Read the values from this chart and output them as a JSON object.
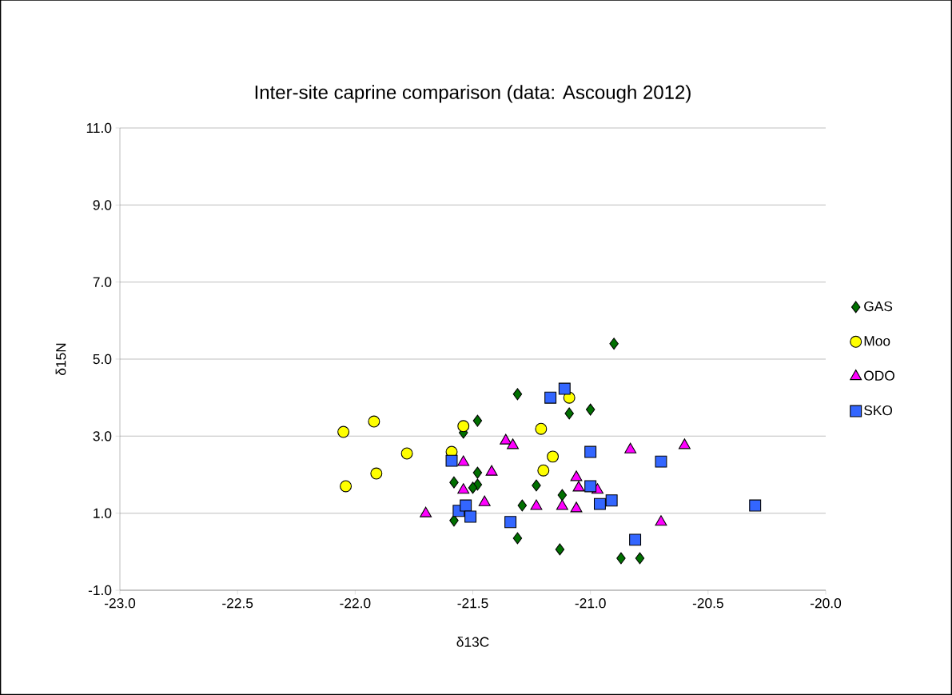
{
  "chart_data": {
    "type": "scatter",
    "title": "Inter-site caprine comparison (data: Ascough 2012)",
    "xlabel": "δ13C",
    "ylabel": "δ15N",
    "xlim": [
      -23,
      -20
    ],
    "ylim": [
      -1,
      11
    ],
    "xticks": [
      {
        "value": -23,
        "label": "-23.0"
      },
      {
        "value": -22.5,
        "label": "-22.5"
      },
      {
        "value": -22,
        "label": "-22.0"
      },
      {
        "value": -21.5,
        "label": "-21.5"
      },
      {
        "value": -21,
        "label": "-21.0"
      },
      {
        "value": -20.5,
        "label": "-20.5"
      },
      {
        "value": -20,
        "label": "-20.0"
      }
    ],
    "yticks": [
      {
        "value": -1,
        "label": "-1.0"
      },
      {
        "value": 1,
        "label": "1.0"
      },
      {
        "value": 3,
        "label": "3.0"
      },
      {
        "value": 5,
        "label": "5.0"
      },
      {
        "value": 7,
        "label": "7.0"
      },
      {
        "value": 9,
        "label": "9.0"
      },
      {
        "value": 11,
        "label": "11.0"
      }
    ],
    "grid": "y",
    "legend": "right",
    "series": [
      {
        "name": "GAS",
        "color": "#007000",
        "marker": "diamond",
        "x": [
          -20.9,
          -21.31,
          -21.48,
          -21.54,
          -21.09,
          -21.0,
          -21.58,
          -21.48,
          -21.48,
          -21.5,
          -21.23,
          -21.29,
          -21.12,
          -21.58,
          -21.31,
          -21.13,
          -20.87,
          -20.79
        ],
        "values": [
          5.4,
          4.09,
          3.4,
          3.09,
          3.59,
          3.69,
          1.8,
          2.05,
          1.74,
          1.66,
          1.72,
          1.2,
          1.47,
          0.81,
          0.35,
          0.06,
          -0.17,
          -0.17
        ]
      },
      {
        "name": "Moo",
        "color": "#ffff00",
        "marker": "circle",
        "x": [
          -22.05,
          -21.92,
          -21.78,
          -22.04,
          -21.91,
          -21.54,
          -21.59,
          -21.21,
          -21.16,
          -21.2,
          -21.09
        ],
        "values": [
          3.11,
          3.38,
          2.55,
          1.7,
          2.03,
          3.26,
          2.59,
          3.19,
          2.47,
          2.11,
          4.0
        ]
      },
      {
        "name": "ODO",
        "color": "#ff00ff",
        "marker": "triangle",
        "x": [
          -21.7,
          -21.54,
          -21.54,
          -21.42,
          -21.45,
          -21.36,
          -21.33,
          -21.23,
          -21.12,
          -21.06,
          -21.06,
          -21.05,
          -20.83,
          -20.6,
          -20.7,
          -20.97
        ],
        "values": [
          0.99,
          2.32,
          1.6,
          2.07,
          1.28,
          2.88,
          2.76,
          1.18,
          1.18,
          1.12,
          1.93,
          1.66,
          2.65,
          2.76,
          0.77,
          1.6
        ]
      },
      {
        "name": "SKO",
        "color": "#3366ff",
        "marker": "square",
        "x": [
          -21.59,
          -21.56,
          -21.53,
          -21.51,
          -21.34,
          -21.17,
          -21.11,
          -21.0,
          -21.0,
          -20.96,
          -20.91,
          -20.7,
          -20.81,
          -20.3
        ],
        "values": [
          2.36,
          1.06,
          1.2,
          0.91,
          0.77,
          4.0,
          4.23,
          2.59,
          1.7,
          1.24,
          1.33,
          2.34,
          0.31,
          1.2
        ]
      }
    ]
  }
}
